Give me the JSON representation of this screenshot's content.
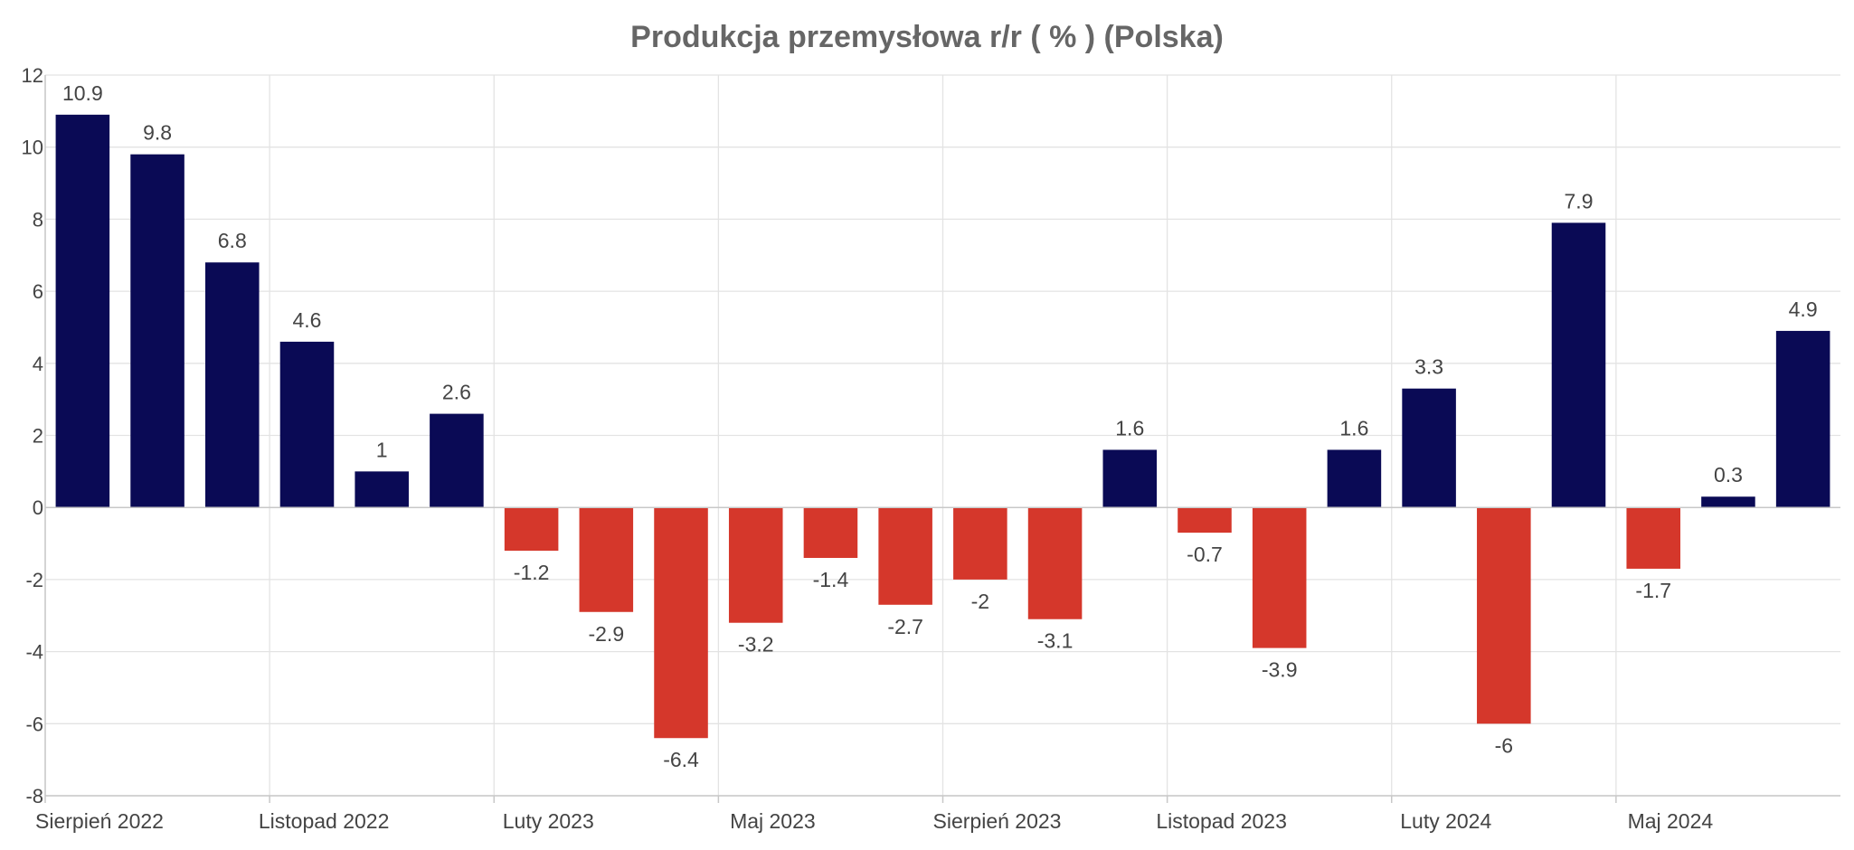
{
  "chart_data": {
    "type": "bar",
    "title": "Produkcja przemysłowa r/r ( % ) (Polska)",
    "xlabel": "",
    "ylabel": "",
    "ylim": [
      -8,
      12
    ],
    "yticks": [
      12,
      10,
      8,
      6,
      4,
      2,
      0,
      -2,
      -4,
      -6,
      -8
    ],
    "grid": true,
    "x_tick_labels": [
      "Sierpień 2022",
      "Listopad 2022",
      "Luty 2023",
      "Maj 2023",
      "Sierpień 2023",
      "Listopad 2023",
      "Luty 2024",
      "Maj 2024"
    ],
    "values": [
      10.9,
      9.8,
      6.8,
      4.6,
      1,
      2.6,
      -1.2,
      -2.9,
      -6.4,
      -3.2,
      -1.4,
      -2.7,
      -2,
      -3.1,
      1.6,
      -0.7,
      -3.9,
      1.6,
      3.3,
      -6,
      7.9,
      -1.7,
      0.3,
      4.9
    ],
    "colors": {
      "positive": "#0a0a55",
      "negative": "#d5372b"
    }
  }
}
